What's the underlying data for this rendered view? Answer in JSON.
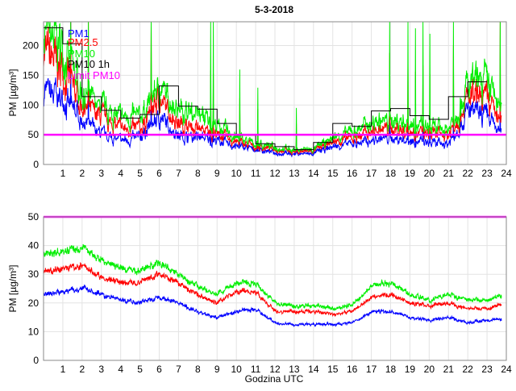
{
  "chart_data": [
    {
      "type": "line",
      "title": "5-3-2018",
      "xlabel": "",
      "ylabel": "PM [µg/m³]",
      "xlim": [
        0,
        24
      ],
      "ylim": [
        0,
        240
      ],
      "xticks": [
        1,
        2,
        3,
        4,
        5,
        6,
        7,
        8,
        9,
        10,
        11,
        12,
        13,
        14,
        15,
        16,
        17,
        18,
        19,
        20,
        21,
        22,
        23,
        24
      ],
      "yticks": [
        0,
        50,
        100,
        150,
        200
      ],
      "grid": true,
      "legend_position": "top-left",
      "legend": [
        "PM1",
        "PM2.5",
        "PM10",
        "PM10 1h",
        "Limit PM10"
      ],
      "x_hours": [
        0,
        1,
        2,
        3,
        4,
        5,
        6,
        7,
        8,
        9,
        10,
        11,
        12,
        13,
        14,
        15,
        16,
        17,
        18,
        19,
        20,
        21,
        22,
        23,
        23.75
      ],
      "series": [
        {
          "name": "PM1",
          "color": "#0000ff",
          "values": [
            125,
            110,
            75,
            50,
            40,
            45,
            80,
            50,
            45,
            40,
            30,
            25,
            20,
            18,
            18,
            30,
            35,
            40,
            45,
            40,
            35,
            35,
            90,
            80,
            50
          ]
        },
        {
          "name": "PM2.5",
          "color": "#ff0000",
          "values": [
            190,
            160,
            100,
            80,
            60,
            60,
            110,
            70,
            60,
            50,
            38,
            30,
            26,
            22,
            22,
            38,
            45,
            55,
            60,
            55,
            50,
            50,
            110,
            110,
            70
          ]
        },
        {
          "name": "PM10",
          "color": "#00ee00",
          "values": [
            220,
            200,
            120,
            95,
            80,
            80,
            130,
            95,
            85,
            65,
            45,
            35,
            30,
            25,
            25,
            45,
            55,
            70,
            75,
            70,
            60,
            60,
            130,
            140,
            90
          ]
        }
      ],
      "pm10_1h": {
        "name": "PM10 1h",
        "color": "#000000",
        "values": [
          230,
          203,
          114,
          91,
          78,
          84,
          132,
          98,
          93,
          69,
          49,
          35,
          30,
          25,
          37,
          69,
          64,
          90,
          94,
          82,
          76,
          114,
          139
        ]
      },
      "limit": {
        "name": "Limit PM10",
        "color": "#ff00ff",
        "value": 50
      }
    },
    {
      "type": "line",
      "title": "",
      "xlabel": "Godzina UTC",
      "ylabel": "PM [µg/m³]",
      "xlim": [
        0,
        24
      ],
      "ylim": [
        0,
        50
      ],
      "xticks": [
        1,
        2,
        3,
        4,
        5,
        6,
        7,
        8,
        9,
        10,
        11,
        12,
        13,
        14,
        15,
        16,
        17,
        18,
        19,
        20,
        21,
        22,
        23,
        24
      ],
      "yticks": [
        0,
        10,
        20,
        30,
        40,
        50
      ],
      "grid": true,
      "x_hours": [
        0,
        1,
        2,
        3,
        4,
        5,
        6,
        7,
        8,
        9,
        10,
        11,
        12,
        13,
        14,
        15,
        16,
        17,
        18,
        19,
        20,
        21,
        22,
        23,
        23.75
      ],
      "series": [
        {
          "name": "PM1",
          "color": "#0000ff",
          "values": [
            23,
            24,
            25,
            23,
            21,
            20,
            22,
            20,
            17,
            15,
            17,
            18,
            13,
            12.5,
            12.5,
            12.5,
            13,
            17,
            17,
            15,
            14,
            15,
            13,
            14,
            14
          ]
        },
        {
          "name": "PM2.5",
          "color": "#ff0000",
          "values": [
            31,
            32,
            33,
            29,
            27,
            27,
            30,
            27,
            23,
            20,
            24,
            24,
            17,
            17,
            17,
            16,
            17,
            22,
            23,
            20,
            19,
            20,
            18,
            18,
            19
          ]
        },
        {
          "name": "PM10",
          "color": "#00ee00",
          "values": [
            37,
            38,
            39,
            35,
            32,
            31,
            34,
            30,
            26,
            23,
            27,
            27,
            20,
            19,
            19,
            18,
            19,
            26,
            27,
            23,
            21,
            23,
            21,
            21,
            22
          ]
        }
      ],
      "limit": {
        "name": "Limit PM10",
        "color": "#ff00ff",
        "value": 50
      }
    }
  ]
}
